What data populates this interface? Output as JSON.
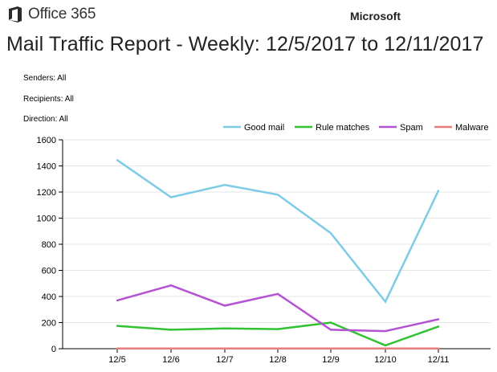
{
  "header": {
    "product": "Office 365",
    "brand": "Microsoft",
    "report_title": "Mail Traffic Report - Weekly: 12/5/2017 to 12/11/2017"
  },
  "filters": {
    "senders": "Senders: All",
    "recipients": "Recipients: All",
    "direction": "Direction: All"
  },
  "colors": {
    "office_logo": "#2b2b2b",
    "good_mail": "#7ecbe6",
    "rule_matches": "#33c233",
    "spam": "#b452d4",
    "malware": "#e87a7a",
    "gridline": "#e6e6e6"
  },
  "chart_data": {
    "type": "line",
    "title": "",
    "xlabel": "",
    "ylabel": "",
    "categories": [
      "12/5",
      "12/6",
      "12/7",
      "12/8",
      "12/9",
      "12/10",
      "12/11"
    ],
    "ylim": [
      0,
      1600
    ],
    "yticks": [
      0,
      200,
      400,
      600,
      800,
      1000,
      1200,
      1400,
      1600
    ],
    "grid": true,
    "legend_position": "top-right",
    "series": [
      {
        "name": "Good mail",
        "color": "#7ecbe6",
        "values": [
          1445,
          1160,
          1255,
          1180,
          885,
          360,
          1210
        ]
      },
      {
        "name": "Rule matches",
        "color": "#33c233",
        "values": [
          175,
          145,
          155,
          150,
          200,
          25,
          170
        ]
      },
      {
        "name": "Spam",
        "color": "#b452d4",
        "values": [
          370,
          485,
          330,
          420,
          145,
          135,
          225
        ]
      },
      {
        "name": "Malware",
        "color": "#e87a7a",
        "values": [
          2,
          2,
          2,
          2,
          2,
          2,
          2
        ]
      }
    ]
  }
}
